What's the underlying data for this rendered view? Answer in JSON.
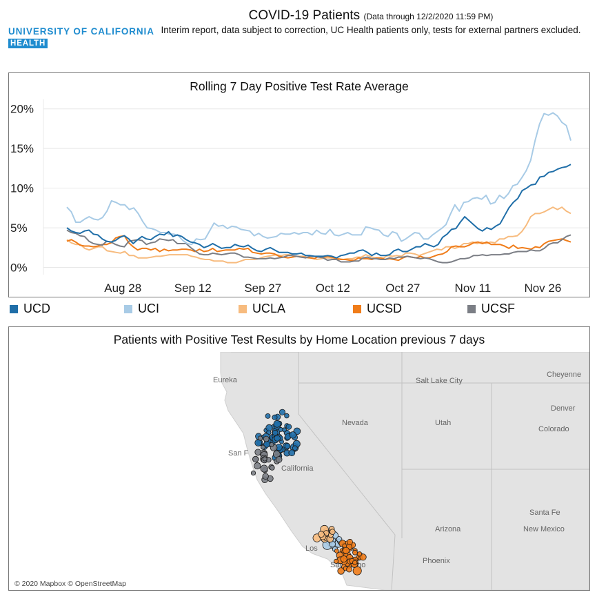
{
  "logo": {
    "top": "UNIVERSITY OF CALIFORNIA",
    "bottom": "HEALTH"
  },
  "header": {
    "title": "COVID-19 Patients",
    "note": "(Data through 12/2/2020 11:59 PM)",
    "subtitle": "Interim report, data subject to correction, UC Health patients only, tests for external partners excluded."
  },
  "colors": {
    "UCD": "#1f6ea8",
    "UCI": "#a8cbe6",
    "UCLA": "#f7bb7e",
    "UCSD": "#f07c19",
    "UCSF": "#7b7e85"
  },
  "chart_data": {
    "type": "line",
    "title": "Rolling 7 Day Positive Test Rate Average",
    "x_start": "2020-08-16",
    "x_end": "2020-12-02",
    "x_ticks": [
      "Aug 28",
      "Sep 12",
      "Sep 27",
      "Oct 12",
      "Oct 27",
      "Nov 11",
      "Nov 26"
    ],
    "y_ticks": [
      "0%",
      "5%",
      "10%",
      "15%",
      "20%"
    ],
    "ylim": [
      -1,
      20.5
    ],
    "grid": true,
    "legend_position": "bottom",
    "series": [
      {
        "name": "UCD",
        "values": [
          5.0,
          4.6,
          4.4,
          4.3,
          4.6,
          4.7,
          4.2,
          4.1,
          3.6,
          3.3,
          3.2,
          3.4,
          3.8,
          4.0,
          3.6,
          3.0,
          3.5,
          3.9,
          3.6,
          3.5,
          3.9,
          4.2,
          4.1,
          4.5,
          3.9,
          4.1,
          3.9,
          3.5,
          3.2,
          3.1,
          2.9,
          2.5,
          2.7,
          3.0,
          2.7,
          2.4,
          2.5,
          2.5,
          2.9,
          2.7,
          2.6,
          2.8,
          2.4,
          2.1,
          2.0,
          2.3,
          2.5,
          2.2,
          1.9,
          1.9,
          1.9,
          1.7,
          1.7,
          1.8,
          1.5,
          1.5,
          1.4,
          1.4,
          1.4,
          1.5,
          1.4,
          1.2,
          1.5,
          1.6,
          1.8,
          1.8,
          2.1,
          2.2,
          1.9,
          1.5,
          1.8,
          1.5,
          1.5,
          1.6,
          2.1,
          2.3,
          2.0,
          2.0,
          2.3,
          2.6,
          2.6,
          3.0,
          2.8,
          2.6,
          2.9,
          3.8,
          4.2,
          4.8,
          4.9,
          5.7,
          6.4,
          5.9,
          5.4,
          4.9,
          4.6,
          5.0,
          4.8,
          5.2,
          5.5,
          6.5,
          7.5,
          8.2,
          8.7,
          9.7,
          10.0,
          10.4,
          10.5,
          11.4,
          11.5,
          12.0,
          12.1,
          12.4,
          12.6,
          12.7,
          13.0
        ]
      },
      {
        "name": "UCI",
        "values": [
          7.6,
          7.0,
          5.7,
          5.7,
          6.1,
          6.4,
          6.1,
          6.0,
          6.3,
          7.1,
          8.4,
          8.2,
          7.9,
          7.9,
          7.3,
          7.5,
          6.8,
          5.8,
          5.0,
          4.9,
          4.7,
          4.4,
          4.4,
          4.2,
          4.2,
          4.0,
          3.4,
          3.0,
          2.9,
          3.6,
          3.5,
          3.6,
          4.6,
          5.6,
          5.2,
          5.3,
          4.9,
          5.2,
          5.1,
          4.8,
          4.7,
          4.6,
          4.0,
          4.3,
          3.9,
          3.7,
          3.8,
          3.9,
          4.3,
          4.2,
          4.2,
          4.4,
          4.2,
          4.4,
          4.4,
          4.1,
          4.7,
          4.3,
          4.2,
          4.8,
          4.1,
          4.0,
          4.2,
          4.4,
          4.1,
          4.1,
          4.1,
          5.1,
          5.0,
          4.8,
          4.7,
          4.1,
          3.9,
          4.5,
          4.3,
          3.3,
          3.6,
          4.0,
          4.4,
          4.3,
          3.6,
          3.6,
          4.1,
          4.5,
          4.9,
          5.4,
          6.7,
          7.9,
          7.1,
          8.2,
          8.3,
          8.7,
          8.8,
          8.6,
          9.1,
          8.0,
          8.2,
          9.1,
          8.7,
          9.3,
          10.3,
          10.5,
          11.3,
          12.2,
          13.5,
          16.0,
          18.1,
          19.4,
          19.2,
          19.5,
          19.1,
          18.3,
          17.9,
          16.0
        ]
      },
      {
        "name": "UCLA",
        "values": [
          3.5,
          3.1,
          2.9,
          2.9,
          2.4,
          2.2,
          2.4,
          2.6,
          2.6,
          2.1,
          2.0,
          1.9,
          1.8,
          2.0,
          1.5,
          1.5,
          1.2,
          1.2,
          1.2,
          1.3,
          1.4,
          1.4,
          1.5,
          1.6,
          1.6,
          1.6,
          1.6,
          1.6,
          1.4,
          1.3,
          1.1,
          1.0,
          1.0,
          0.8,
          0.8,
          0.8,
          0.6,
          0.6,
          0.6,
          0.8,
          1.0,
          1.0,
          1.0,
          1.1,
          1.3,
          1.4,
          1.5,
          1.6,
          1.5,
          1.6,
          1.6,
          1.4,
          1.4,
          1.4,
          1.2,
          1.2,
          1.0,
          1.1,
          1.2,
          1.2,
          1.1,
          1.1,
          1.0,
          1.1,
          1.1,
          1.3,
          1.3,
          1.6,
          1.4,
          1.2,
          1.1,
          1.2,
          1.5,
          1.4,
          1.5,
          1.4,
          1.8,
          1.8,
          1.7,
          1.5,
          1.7,
          1.9,
          2.1,
          2.3,
          2.2,
          2.6,
          2.6,
          2.4,
          2.6,
          3.0,
          3.0,
          3.2,
          3.0,
          3.2,
          3.0,
          3.2,
          3.1,
          3.6,
          3.6,
          3.9,
          3.9,
          4.0,
          4.5,
          5.3,
          6.4,
          6.8,
          6.8,
          7.0,
          7.3,
          7.6,
          7.3,
          7.6,
          7.1,
          6.8
        ]
      },
      {
        "name": "UCSD",
        "values": [
          3.3,
          3.5,
          3.2,
          2.8,
          2.7,
          2.7,
          2.6,
          2.7,
          2.9,
          2.9,
          3.1,
          3.7,
          3.9,
          4.0,
          3.1,
          2.6,
          2.2,
          2.4,
          2.4,
          2.2,
          2.4,
          2.0,
          2.3,
          2.1,
          2.2,
          2.2,
          2.3,
          2.3,
          2.2,
          2.0,
          2.3,
          2.0,
          2.1,
          2.4,
          2.0,
          2.1,
          2.2,
          2.2,
          2.2,
          2.4,
          2.3,
          2.4,
          1.9,
          1.8,
          1.7,
          1.8,
          1.8,
          1.7,
          1.4,
          1.3,
          1.2,
          1.3,
          1.4,
          1.3,
          1.3,
          1.2,
          1.1,
          1.4,
          1.3,
          1.4,
          1.3,
          1.1,
          1.0,
          1.0,
          0.9,
          0.9,
          1.2,
          1.1,
          1.1,
          1.0,
          1.2,
          1.2,
          1.0,
          1.1,
          1.0,
          0.9,
          1.2,
          1.4,
          1.3,
          1.2,
          1.4,
          1.2,
          1.2,
          1.4,
          1.6,
          1.7,
          2.0,
          2.6,
          2.7,
          2.6,
          2.6,
          2.8,
          3.1,
          3.2,
          3.0,
          3.2,
          2.9,
          2.9,
          2.9,
          2.7,
          2.4,
          2.8,
          2.4,
          2.5,
          2.4,
          2.3,
          2.6,
          2.5,
          3.0,
          3.3,
          3.4,
          3.5,
          3.6,
          3.4,
          3.2
        ]
      },
      {
        "name": "UCSF",
        "values": [
          4.7,
          4.4,
          4.3,
          4.0,
          3.9,
          3.3,
          3.0,
          2.9,
          2.8,
          3.3,
          3.2,
          2.9,
          2.7,
          2.6,
          3.3,
          3.4,
          3.5,
          3.4,
          2.9,
          3.1,
          3.2,
          3.6,
          3.5,
          3.4,
          3.5,
          3.0,
          3.0,
          3.0,
          2.5,
          2.1,
          1.7,
          1.6,
          1.6,
          1.8,
          1.7,
          1.6,
          1.7,
          1.8,
          1.8,
          1.6,
          1.3,
          1.3,
          1.2,
          1.1,
          1.1,
          1.1,
          1.2,
          1.1,
          1.2,
          1.3,
          1.5,
          1.5,
          1.4,
          1.3,
          1.2,
          1.4,
          1.4,
          1.3,
          1.2,
          0.9,
          1.0,
          1.0,
          0.7,
          0.7,
          0.7,
          0.8,
          0.8,
          1.2,
          1.3,
          1.1,
          1.1,
          1.0,
          1.0,
          1.2,
          1.1,
          1.3,
          1.3,
          1.4,
          1.3,
          1.2,
          1.1,
          1.2,
          1.1,
          0.9,
          0.7,
          0.6,
          0.6,
          0.7,
          0.9,
          1.1,
          1.1,
          1.2,
          1.5,
          1.5,
          1.6,
          1.5,
          1.6,
          1.6,
          1.6,
          1.7,
          1.7,
          1.9,
          2.0,
          2.0,
          2.0,
          2.2,
          2.1,
          2.1,
          2.4,
          2.9,
          3.1,
          3.1,
          3.5,
          3.9,
          4.1
        ]
      }
    ]
  },
  "map": {
    "title": "Patients with Positive Test Results by Home Location previous 7 days",
    "credit": "© 2020 Mapbox © OpenStreetMap",
    "places": [
      "Eureka",
      "Salt Lake City",
      "Cheyenne",
      "Nevada",
      "Utah",
      "Denver",
      "Colorado",
      "San F",
      "California",
      "Santa Fe",
      "Arizona",
      "New Mexico",
      "Los",
      "Phoenix",
      "San Diego"
    ],
    "clusters": [
      {
        "name": "UCD",
        "points": 60
      },
      {
        "name": "UCI",
        "points": 12
      },
      {
        "name": "UCLA",
        "points": 14
      },
      {
        "name": "UCSD",
        "points": 45
      },
      {
        "name": "UCSF",
        "points": 26
      }
    ]
  }
}
